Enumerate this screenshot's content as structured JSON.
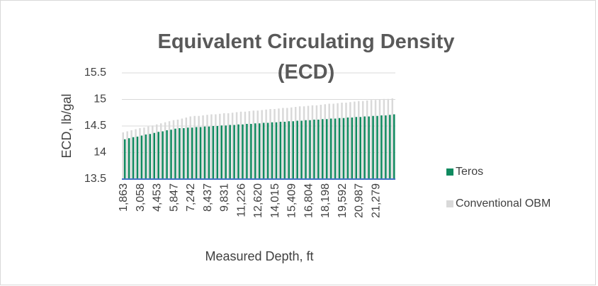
{
  "chart_data": {
    "type": "bar",
    "title": "Equivalent Circulating Density (ECD)",
    "x_label": "Measured Depth, ft",
    "y_label": "ECD, lb/gal",
    "categories": [
      "1,863",
      null,
      null,
      null,
      "3,058",
      null,
      null,
      null,
      "4,453",
      null,
      null,
      null,
      "5,847",
      null,
      null,
      null,
      "7,242",
      null,
      null,
      null,
      "8,437",
      null,
      null,
      null,
      "9,831",
      null,
      null,
      null,
      "11,226",
      null,
      null,
      null,
      "12,620",
      null,
      null,
      null,
      "14,015",
      null,
      null,
      null,
      "15,409",
      null,
      null,
      null,
      "16,804",
      null,
      null,
      null,
      "18,198",
      null,
      null,
      null,
      "19,592",
      null,
      null,
      null,
      "20,987",
      null,
      null,
      null,
      "21,279",
      null,
      null,
      null,
      null
    ],
    "series": [
      {
        "name": "Teros",
        "color": "#0f8a5f",
        "values": [
          14.25,
          14.27,
          14.29,
          14.3,
          14.32,
          14.34,
          14.35,
          14.37,
          14.39,
          14.4,
          14.42,
          14.43,
          14.45,
          14.46,
          14.46,
          14.47,
          14.47,
          14.48,
          14.48,
          14.49,
          14.49,
          14.5,
          14.5,
          14.51,
          14.51,
          14.52,
          14.52,
          14.53,
          14.53,
          14.54,
          14.54,
          14.55,
          14.55,
          14.56,
          14.56,
          14.57,
          14.57,
          14.58,
          14.58,
          14.59,
          14.59,
          14.6,
          14.6,
          14.61,
          14.61,
          14.62,
          14.62,
          14.63,
          14.63,
          14.64,
          14.64,
          14.65,
          14.65,
          14.66,
          14.66,
          14.67,
          14.67,
          14.68,
          14.68,
          14.69,
          14.69,
          14.7,
          14.7,
          14.71,
          14.72
        ]
      },
      {
        "name": "Conventional OBM",
        "color": "#d9d9d9",
        "values": [
          14.38,
          14.4,
          14.42,
          14.44,
          14.46,
          14.47,
          14.49,
          14.51,
          14.53,
          14.55,
          14.57,
          14.59,
          14.61,
          14.62,
          14.64,
          14.66,
          14.68,
          14.69,
          14.69,
          14.7,
          14.71,
          14.72,
          14.72,
          14.73,
          14.74,
          14.74,
          14.75,
          14.76,
          14.77,
          14.77,
          14.78,
          14.79,
          14.79,
          14.8,
          14.81,
          14.82,
          14.82,
          14.83,
          14.84,
          14.84,
          14.85,
          14.86,
          14.87,
          14.87,
          14.88,
          14.89,
          14.89,
          14.9,
          14.91,
          14.92,
          14.92,
          14.93,
          14.94,
          14.94,
          14.95,
          14.96,
          14.97,
          14.97,
          14.98,
          14.99,
          14.99,
          15.0,
          15.01,
          15.01,
          15.02
        ]
      }
    ],
    "ylim": [
      13.5,
      15.5
    ],
    "yticks": [
      13.5,
      14,
      14.5,
      15,
      15.5
    ],
    "grid": true,
    "axis_color": "#4472c4",
    "legend": "right"
  }
}
